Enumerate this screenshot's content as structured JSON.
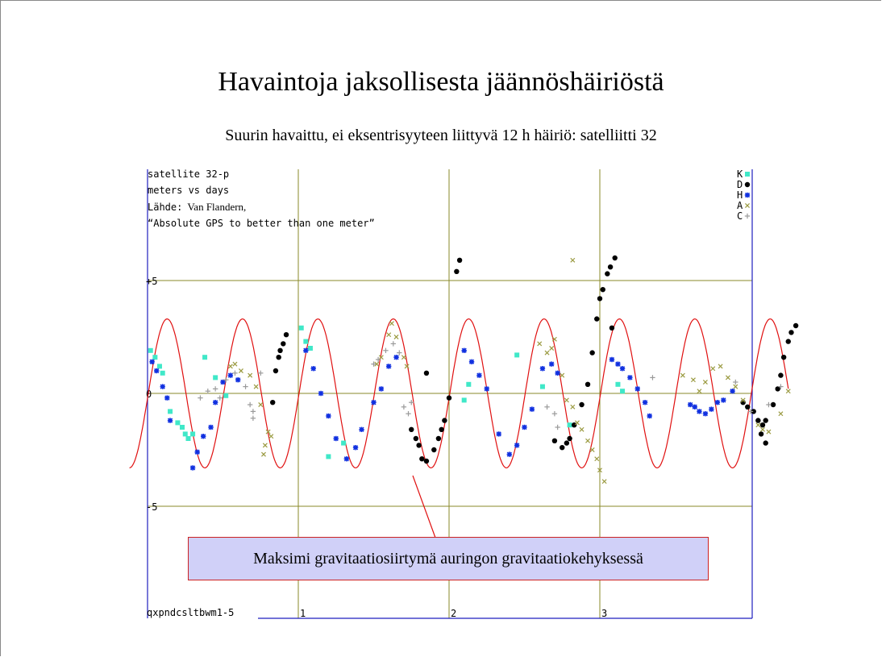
{
  "slide": {
    "title": "Havaintoja jaksollisesta jäännöshäiriöstä",
    "subtitle": "Suurin havaittu, ei eksentrisyyteen liittyvä 12 h häiriö: satelliitti 32"
  },
  "callout": {
    "text": "Maksimi gravitaatiosiirtymä auringon gravitaatiokehyksessä"
  },
  "chart_data": {
    "type": "scatter",
    "header_lines": [
      "satellite 32-p",
      "meters vs days"
    ],
    "source_label": "Lähde:",
    "source_author": "Van Flandern,",
    "source_title": "“Absolute GPS to better than one meter”",
    "footer_id": "qxpndcsltbwm1-5",
    "xlim": [
      0,
      4
    ],
    "ylim": [
      -8,
      10
    ],
    "x_ticks": [
      {
        "value": 1,
        "label": "1"
      },
      {
        "value": 2,
        "label": "2"
      },
      {
        "value": 3,
        "label": "3"
      }
    ],
    "y_ticks": [
      {
        "value": 5,
        "label": "+5"
      },
      {
        "value": 0,
        "label": "0"
      },
      {
        "value": -5,
        "label": "-5"
      }
    ],
    "grid": true,
    "legend_position": "top-right",
    "colors": {
      "grid": "#8a8a2a",
      "axis": "#1f1fbf",
      "model": "#e01010",
      "K": "#40e8c8",
      "D": "#000000",
      "H": "#1030e0",
      "A": "#9a9a40",
      "C": "#9a9a9a"
    },
    "legend": [
      {
        "key": "K",
        "marker": "square"
      },
      {
        "key": "D",
        "marker": "circle"
      },
      {
        "key": "H",
        "marker": "asterisk"
      },
      {
        "key": "A",
        "marker": "x"
      },
      {
        "key": "C",
        "marker": "plus"
      }
    ],
    "model_curve": {
      "amplitude": 3.3,
      "period_days": 0.5,
      "phase_days": 0.13,
      "x_range": [
        -0.12,
        4.25
      ]
    },
    "series": [
      {
        "key": "K",
        "points": [
          [
            0.02,
            1.9
          ],
          [
            0.05,
            1.6
          ],
          [
            0.08,
            1.2
          ],
          [
            0.1,
            0.9
          ],
          [
            0.15,
            -0.8
          ],
          [
            0.2,
            -1.3
          ],
          [
            0.23,
            -1.5
          ],
          [
            0.25,
            -1.8
          ],
          [
            0.27,
            -2.0
          ],
          [
            0.3,
            -1.8
          ],
          [
            0.38,
            1.6
          ],
          [
            0.45,
            0.7
          ],
          [
            0.52,
            -0.1
          ],
          [
            1.02,
            2.9
          ],
          [
            1.05,
            2.3
          ],
          [
            1.08,
            2.0
          ],
          [
            1.2,
            -2.8
          ],
          [
            1.3,
            -2.2
          ],
          [
            2.1,
            -0.3
          ],
          [
            2.13,
            0.4
          ],
          [
            2.45,
            1.7
          ],
          [
            2.62,
            0.3
          ],
          [
            2.8,
            -1.4
          ],
          [
            3.12,
            0.4
          ],
          [
            3.15,
            0.1
          ]
        ]
      },
      {
        "key": "D",
        "points": [
          [
            0.83,
            -0.4
          ],
          [
            0.85,
            1.0
          ],
          [
            0.87,
            1.6
          ],
          [
            0.88,
            1.9
          ],
          [
            0.9,
            2.2
          ],
          [
            0.92,
            2.6
          ],
          [
            1.85,
            0.9
          ],
          [
            1.75,
            -1.6
          ],
          [
            1.78,
            -2.0
          ],
          [
            1.8,
            -2.3
          ],
          [
            1.82,
            -2.9
          ],
          [
            1.85,
            -3.0
          ],
          [
            1.9,
            -2.5
          ],
          [
            1.93,
            -2.0
          ],
          [
            1.95,
            -1.6
          ],
          [
            1.97,
            -1.2
          ],
          [
            2.0,
            -0.2
          ],
          [
            2.05,
            5.4
          ],
          [
            2.07,
            5.9
          ],
          [
            2.7,
            -2.1
          ],
          [
            2.75,
            -2.4
          ],
          [
            2.78,
            -2.2
          ],
          [
            2.8,
            -2.0
          ],
          [
            2.83,
            -1.4
          ],
          [
            2.88,
            -0.5
          ],
          [
            2.92,
            0.4
          ],
          [
            2.95,
            1.8
          ],
          [
            2.98,
            3.3
          ],
          [
            3.0,
            4.2
          ],
          [
            3.02,
            4.6
          ],
          [
            3.05,
            5.3
          ],
          [
            3.07,
            5.6
          ],
          [
            3.1,
            6.0
          ],
          [
            3.08,
            2.9
          ],
          [
            3.95,
            -0.4
          ],
          [
            3.98,
            -0.6
          ],
          [
            4.02,
            -0.8
          ],
          [
            4.05,
            -1.2
          ],
          [
            4.08,
            -1.4
          ],
          [
            4.1,
            -1.2
          ],
          [
            4.15,
            -0.5
          ],
          [
            4.18,
            0.2
          ],
          [
            4.2,
            0.8
          ],
          [
            4.22,
            1.6
          ],
          [
            4.25,
            2.3
          ],
          [
            4.27,
            2.7
          ],
          [
            4.3,
            3.0
          ],
          [
            4.1,
            -2.2
          ],
          [
            4.07,
            -1.8
          ]
        ]
      },
      {
        "key": "H",
        "points": [
          [
            0.03,
            1.4
          ],
          [
            0.06,
            1.0
          ],
          [
            0.1,
            0.3
          ],
          [
            0.13,
            -0.2
          ],
          [
            0.15,
            -1.2
          ],
          [
            0.3,
            -3.3
          ],
          [
            0.33,
            -2.6
          ],
          [
            0.37,
            -1.9
          ],
          [
            0.42,
            -1.5
          ],
          [
            0.45,
            -0.4
          ],
          [
            0.5,
            0.5
          ],
          [
            0.55,
            0.8
          ],
          [
            0.6,
            0.6
          ],
          [
            1.05,
            1.9
          ],
          [
            1.1,
            1.1
          ],
          [
            1.15,
            0.0
          ],
          [
            1.2,
            -1.0
          ],
          [
            1.25,
            -2.0
          ],
          [
            1.32,
            -2.9
          ],
          [
            1.38,
            -2.4
          ],
          [
            1.42,
            -1.6
          ],
          [
            1.5,
            -0.4
          ],
          [
            1.55,
            0.2
          ],
          [
            1.6,
            1.2
          ],
          [
            1.65,
            1.6
          ],
          [
            2.1,
            1.9
          ],
          [
            2.15,
            1.4
          ],
          [
            2.2,
            0.8
          ],
          [
            2.25,
            0.2
          ],
          [
            2.33,
            -1.8
          ],
          [
            2.4,
            -2.7
          ],
          [
            2.45,
            -2.3
          ],
          [
            2.5,
            -1.5
          ],
          [
            2.55,
            -0.7
          ],
          [
            2.62,
            1.1
          ],
          [
            2.68,
            1.3
          ],
          [
            2.72,
            0.9
          ],
          [
            3.08,
            1.5
          ],
          [
            3.12,
            1.3
          ],
          [
            3.15,
            1.1
          ],
          [
            3.2,
            0.7
          ],
          [
            3.25,
            0.2
          ],
          [
            3.3,
            -0.4
          ],
          [
            3.33,
            -1.0
          ],
          [
            3.6,
            -0.5
          ],
          [
            3.63,
            -0.6
          ],
          [
            3.66,
            -0.8
          ],
          [
            3.7,
            -0.9
          ],
          [
            3.74,
            -0.7
          ],
          [
            3.78,
            -0.4
          ],
          [
            3.82,
            -0.3
          ],
          [
            3.88,
            0.1
          ]
        ]
      },
      {
        "key": "A",
        "points": [
          [
            0.55,
            1.2
          ],
          [
            0.58,
            1.3
          ],
          [
            0.62,
            1.0
          ],
          [
            0.68,
            0.8
          ],
          [
            0.72,
            0.3
          ],
          [
            0.75,
            -0.5
          ],
          [
            0.8,
            -1.7
          ],
          [
            0.82,
            -1.9
          ],
          [
            0.78,
            -2.3
          ],
          [
            0.77,
            -2.7
          ],
          [
            1.52,
            1.3
          ],
          [
            1.55,
            1.6
          ],
          [
            1.6,
            2.6
          ],
          [
            1.62,
            3.1
          ],
          [
            1.65,
            2.5
          ],
          [
            1.7,
            1.6
          ],
          [
            1.72,
            1.2
          ],
          [
            2.6,
            2.2
          ],
          [
            2.65,
            1.8
          ],
          [
            2.68,
            2.0
          ],
          [
            2.7,
            2.4
          ],
          [
            2.75,
            0.8
          ],
          [
            2.78,
            -0.3
          ],
          [
            2.82,
            -0.6
          ],
          [
            2.85,
            -1.3
          ],
          [
            2.88,
            -1.6
          ],
          [
            2.92,
            -2.1
          ],
          [
            2.95,
            -2.5
          ],
          [
            2.98,
            -2.9
          ],
          [
            3.0,
            -3.4
          ],
          [
            3.03,
            -3.9
          ],
          [
            2.82,
            5.9
          ],
          [
            3.55,
            0.8
          ],
          [
            3.62,
            0.6
          ],
          [
            3.66,
            0.1
          ],
          [
            3.7,
            0.5
          ],
          [
            3.75,
            1.1
          ],
          [
            3.8,
            1.2
          ],
          [
            3.85,
            0.7
          ],
          [
            3.9,
            0.3
          ],
          [
            3.95,
            -0.3
          ],
          [
            4.05,
            -1.4
          ],
          [
            4.08,
            -1.6
          ],
          [
            4.12,
            -1.7
          ],
          [
            4.2,
            -0.9
          ],
          [
            4.25,
            0.1
          ]
        ]
      },
      {
        "key": "C",
        "points": [
          [
            0.35,
            -0.2
          ],
          [
            0.4,
            0.1
          ],
          [
            0.45,
            0.2
          ],
          [
            0.48,
            -0.2
          ],
          [
            0.52,
            0.6
          ],
          [
            0.58,
            0.9
          ],
          [
            0.65,
            0.3
          ],
          [
            0.68,
            -0.5
          ],
          [
            0.7,
            -1.1
          ],
          [
            0.7,
            -0.8
          ],
          [
            0.75,
            0.9
          ],
          [
            1.5,
            1.3
          ],
          [
            1.53,
            1.5
          ],
          [
            1.58,
            1.9
          ],
          [
            1.63,
            2.2
          ],
          [
            1.67,
            1.8
          ],
          [
            1.7,
            -0.6
          ],
          [
            1.73,
            -0.9
          ],
          [
            1.75,
            -0.4
          ],
          [
            2.65,
            -0.6
          ],
          [
            2.7,
            -0.9
          ],
          [
            2.72,
            -1.5
          ],
          [
            3.35,
            0.7
          ],
          [
            3.9,
            0.5
          ],
          [
            4.0,
            -0.8
          ],
          [
            4.12,
            -0.5
          ],
          [
            4.2,
            0.3
          ]
        ]
      }
    ]
  }
}
